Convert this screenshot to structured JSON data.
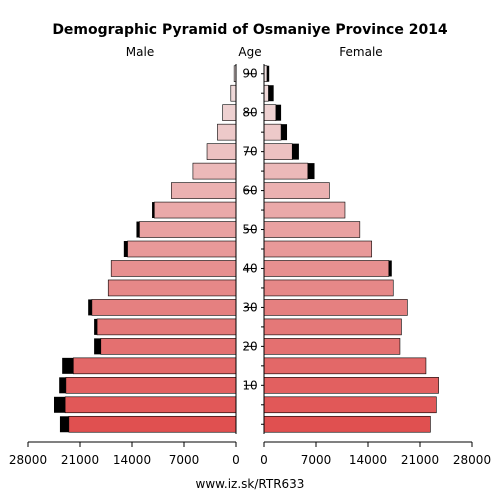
{
  "chart_data": {
    "type": "bar",
    "title": "Demographic Pyramid of Osmaniye Province 2014",
    "left_label": "Male",
    "center_label": "Age",
    "right_label": "Female",
    "footer": "www.iz.sk/RTR633",
    "age_ticks": [
      "10",
      "20",
      "30",
      "40",
      "50",
      "60",
      "70",
      "80",
      "90"
    ],
    "x_ticks_male": [
      "28000",
      "21000",
      "14000",
      "7000",
      "0"
    ],
    "x_ticks_female": [
      "0",
      "7000",
      "14000",
      "21000",
      "28000"
    ],
    "xlim": [
      0,
      28000
    ],
    "age_groups": [
      "0-4",
      "5-9",
      "10-14",
      "15-19",
      "20-24",
      "25-29",
      "30-34",
      "35-39",
      "40-44",
      "45-49",
      "50-54",
      "55-59",
      "60-64",
      "65-69",
      "70-74",
      "75-79",
      "80-84",
      "85-89",
      "90+"
    ],
    "series": [
      {
        "name": "Male",
        "values": [
          22500,
          23000,
          22900,
          21900,
          18200,
          18700,
          19400,
          17200,
          16800,
          14600,
          13000,
          11000,
          8700,
          5800,
          3900,
          2500,
          1800,
          700,
          250
        ],
        "excess": [
          1200,
          1500,
          900,
          1500,
          900,
          400,
          500,
          0,
          0,
          500,
          400,
          300,
          0,
          0,
          0,
          0,
          0,
          0,
          0
        ]
      },
      {
        "name": "Female",
        "values": [
          22400,
          23200,
          23500,
          21800,
          18300,
          18500,
          19300,
          17400,
          16800,
          14500,
          12900,
          10900,
          8800,
          5900,
          3800,
          2300,
          1600,
          600,
          400
        ],
        "excess": [
          0,
          0,
          0,
          0,
          0,
          0,
          0,
          0,
          400,
          0,
          0,
          0,
          0,
          900,
          900,
          800,
          700,
          700,
          300
        ]
      }
    ]
  }
}
